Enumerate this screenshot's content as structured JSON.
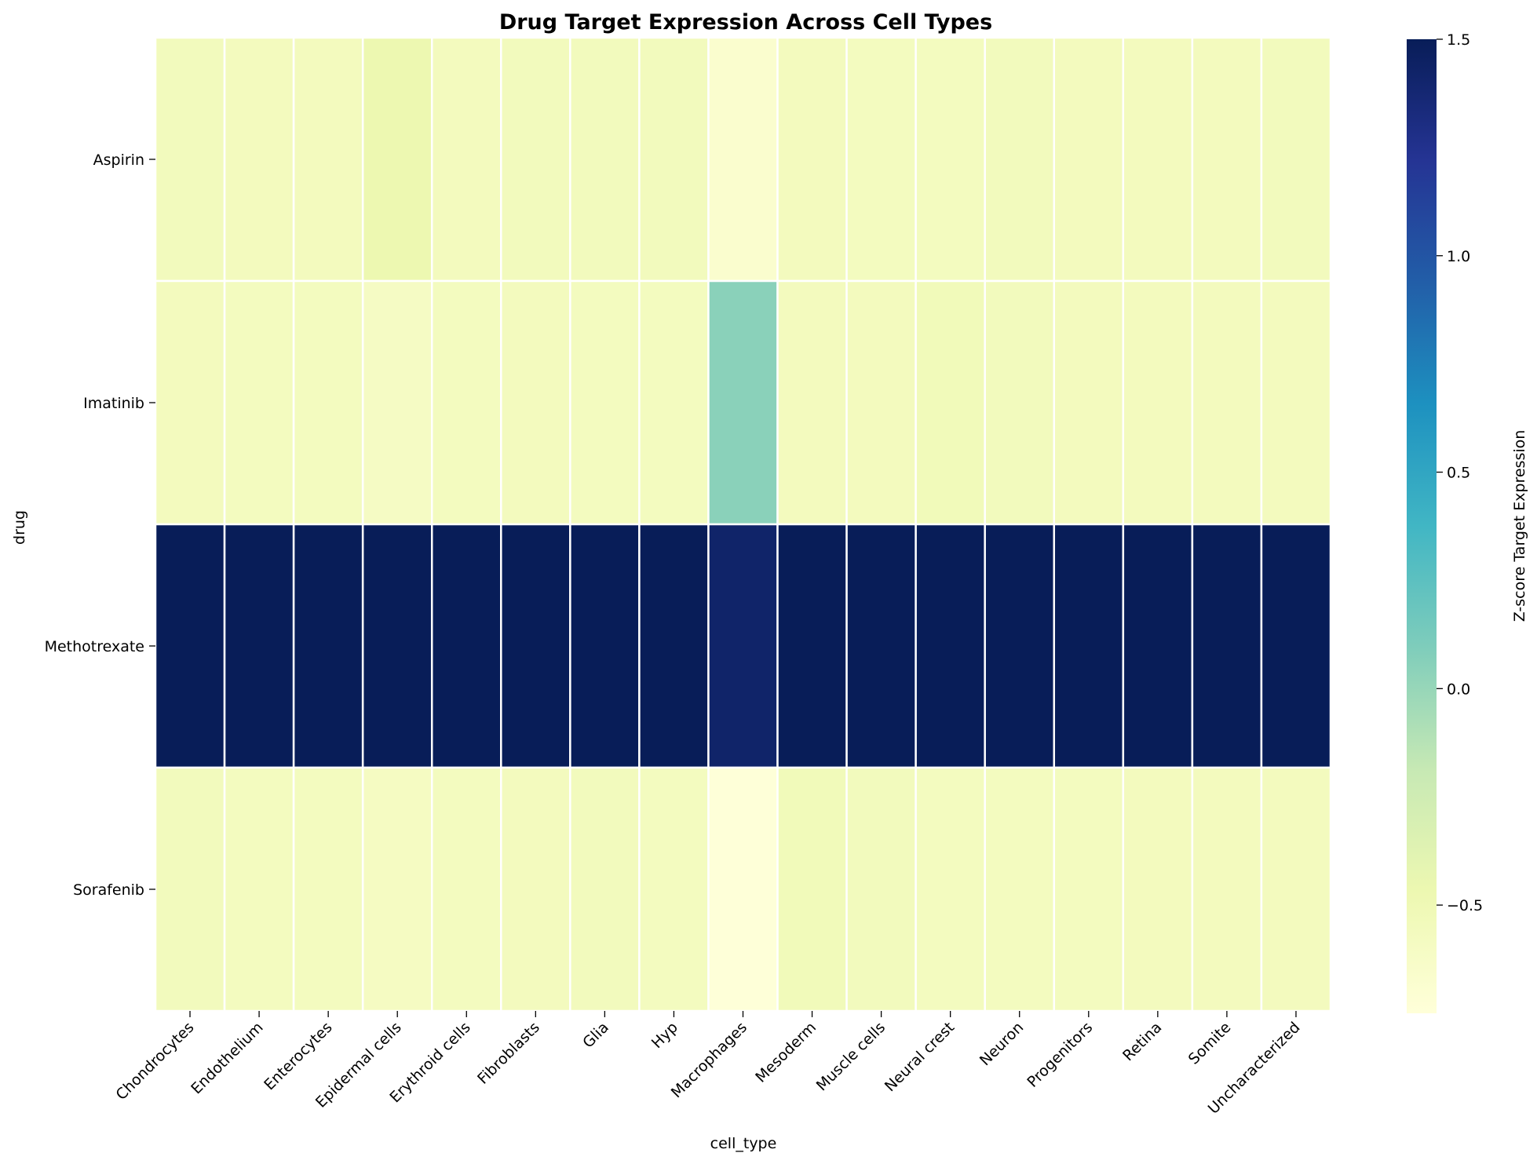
{
  "chart_data": {
    "type": "heatmap",
    "title": "Drug Target Expression Across Cell Types",
    "xlabel": "cell_type",
    "ylabel": "drug",
    "colorbar_label": "Z-score Target Expression",
    "colormap": "YlGnBu",
    "colorbar_range": [
      -0.75,
      1.5
    ],
    "colorbar_ticks": [
      1.5,
      1.0,
      0.5,
      0.0,
      -0.5
    ],
    "colorbar_tick_labels": [
      "1.5",
      "1.0",
      "0.5",
      "0.0",
      "−0.5"
    ],
    "x_categories": [
      "Chondrocytes",
      "Endothelium",
      "Enterocytes",
      "Epidermal cells",
      "Erythroid cells",
      "Fibroblasts",
      "Glia",
      "Hyp",
      "Macrophages",
      "Mesoderm",
      "Muscle cells",
      "Neural crest",
      "Neuron",
      "Progenitors",
      "Retina",
      "Somite",
      "Uncharacterized"
    ],
    "y_categories": [
      "Aspirin",
      "Imatinib",
      "Methotrexate",
      "Sorafenib"
    ],
    "values": [
      [
        -0.55,
        -0.56,
        -0.56,
        -0.47,
        -0.56,
        -0.55,
        -0.55,
        -0.55,
        -0.67,
        -0.56,
        -0.57,
        -0.57,
        -0.55,
        -0.56,
        -0.56,
        -0.56,
        -0.55
      ],
      [
        -0.56,
        -0.57,
        -0.57,
        -0.6,
        -0.57,
        -0.56,
        -0.57,
        -0.57,
        0.05,
        -0.56,
        -0.56,
        -0.53,
        -0.55,
        -0.56,
        -0.56,
        -0.56,
        -0.56
      ],
      [
        1.5,
        1.5,
        1.5,
        1.5,
        1.5,
        1.5,
        1.5,
        1.5,
        1.42,
        1.5,
        1.5,
        1.5,
        1.5,
        1.5,
        1.5,
        1.5,
        1.5
      ],
      [
        -0.55,
        -0.57,
        -0.57,
        -0.59,
        -0.57,
        -0.56,
        -0.55,
        -0.57,
        -0.74,
        -0.53,
        -0.55,
        -0.57,
        -0.57,
        -0.57,
        -0.56,
        -0.56,
        -0.56
      ]
    ]
  }
}
